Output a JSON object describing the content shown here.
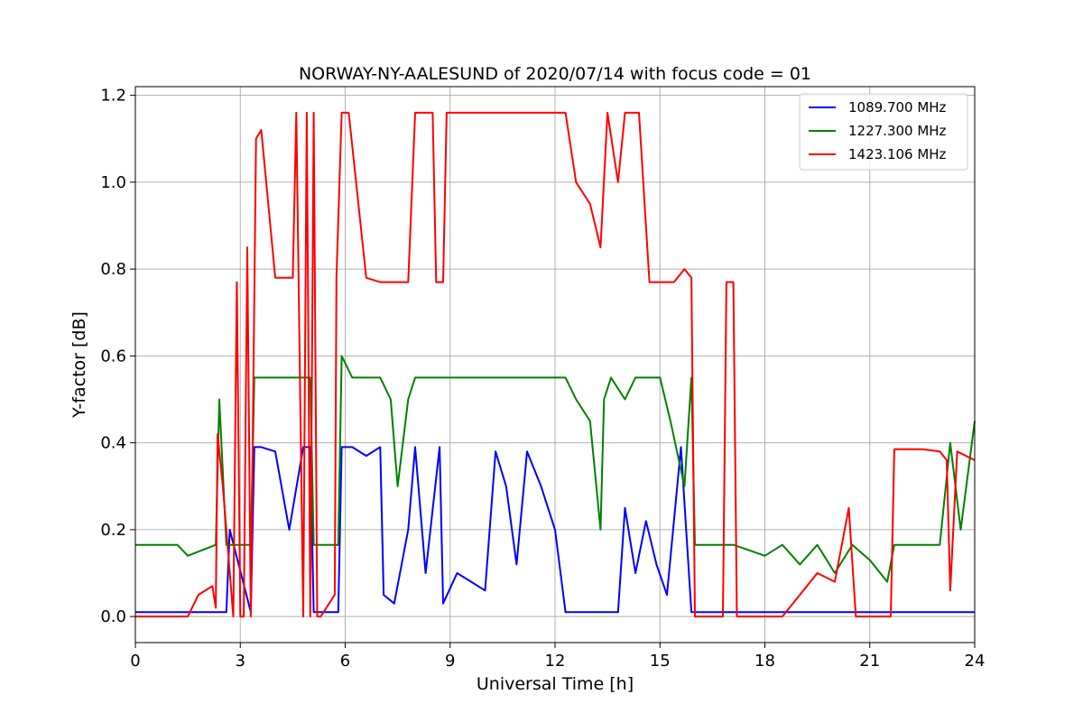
{
  "chart_data": {
    "type": "line",
    "title": "NORWAY-NY-AALESUND of 2020/07/14 with focus code = 01",
    "xlabel": "Universal Time [h]",
    "ylabel": "Y-factor [dB]",
    "xlim": [
      0,
      24
    ],
    "ylim": [
      -0.06,
      1.22
    ],
    "xticks": [
      0,
      3,
      6,
      9,
      12,
      15,
      18,
      21,
      24
    ],
    "yticks": [
      0.0,
      0.2,
      0.4,
      0.6,
      0.8,
      1.0,
      1.2
    ],
    "xtick_labels": [
      "0",
      "3",
      "6",
      "9",
      "12",
      "15",
      "18",
      "21",
      "24"
    ],
    "ytick_labels": [
      "0.0",
      "0.2",
      "0.4",
      "0.6",
      "0.8",
      "1.0",
      "1.2"
    ],
    "grid": true,
    "legend_position": "top-right",
    "series": [
      {
        "name": "1089.700 MHz",
        "color": "#0000ff",
        "x": [
          0,
          2.6,
          2.7,
          3.3,
          3.4,
          3.6,
          4.0,
          4.4,
          4.8,
          5.0,
          5.1,
          5.2,
          5.8,
          5.9,
          6.2,
          6.6,
          7.0,
          7.1,
          7.4,
          7.8,
          8.0,
          8.3,
          8.7,
          8.8,
          9.2,
          9.6,
          10.0,
          10.3,
          10.6,
          10.9,
          11.2,
          11.6,
          12.0,
          12.3,
          12.5,
          13.0,
          13.8,
          14.0,
          14.3,
          14.6,
          14.9,
          15.2,
          15.6,
          15.9,
          16.0,
          17.0,
          17.1,
          24
        ],
        "y": [
          0.01,
          0.01,
          0.2,
          0.01,
          0.39,
          0.39,
          0.38,
          0.2,
          0.39,
          0.39,
          0.01,
          0.01,
          0.01,
          0.39,
          0.39,
          0.37,
          0.39,
          0.05,
          0.03,
          0.2,
          0.39,
          0.1,
          0.39,
          0.03,
          0.1,
          0.08,
          0.06,
          0.38,
          0.3,
          0.12,
          0.38,
          0.3,
          0.2,
          0.01,
          0.01,
          0.01,
          0.01,
          0.25,
          0.1,
          0.22,
          0.12,
          0.05,
          0.39,
          0.01,
          0.01,
          0.01,
          0.01,
          0.01
        ]
      },
      {
        "name": "1227.300 MHz",
        "color": "#008000",
        "x": [
          0,
          1.2,
          1.5,
          2.3,
          2.4,
          2.6,
          3.3,
          3.4,
          5.0,
          5.1,
          5.8,
          5.9,
          6.2,
          6.5,
          7.0,
          7.3,
          7.5,
          7.8,
          8.0,
          12.0,
          12.3,
          12.6,
          13.0,
          13.3,
          13.4,
          13.6,
          14.0,
          14.3,
          15.0,
          15.3,
          15.7,
          15.9,
          16.0,
          17.0,
          17.1,
          18.0,
          18.5,
          19.0,
          19.5,
          20.0,
          20.5,
          21.0,
          21.5,
          21.7,
          21.8,
          23.0,
          23.3,
          23.6,
          24
        ],
        "y": [
          0.165,
          0.165,
          0.14,
          0.165,
          0.5,
          0.165,
          0.165,
          0.55,
          0.55,
          0.165,
          0.165,
          0.6,
          0.55,
          0.55,
          0.55,
          0.5,
          0.3,
          0.5,
          0.55,
          0.55,
          0.55,
          0.5,
          0.45,
          0.2,
          0.5,
          0.55,
          0.5,
          0.55,
          0.55,
          0.45,
          0.3,
          0.55,
          0.165,
          0.165,
          0.165,
          0.14,
          0.165,
          0.12,
          0.165,
          0.1,
          0.165,
          0.13,
          0.08,
          0.165,
          0.165,
          0.165,
          0.4,
          0.2,
          0.45
        ]
      },
      {
        "name": "1423.106 MHz",
        "color": "#ff0000",
        "x": [
          0,
          1.5,
          1.8,
          2.2,
          2.3,
          2.35,
          2.5,
          2.8,
          2.9,
          3.0,
          3.1,
          3.2,
          3.3,
          3.45,
          3.6,
          4.0,
          4.1,
          4.5,
          4.6,
          4.8,
          4.9,
          5.0,
          5.1,
          5.2,
          5.3,
          5.7,
          5.75,
          5.9,
          6.1,
          6.6,
          7.0,
          7.1,
          7.8,
          8.0,
          8.1,
          8.5,
          8.6,
          8.8,
          8.9,
          12.0,
          12.3,
          12.6,
          13.0,
          13.3,
          13.5,
          13.8,
          14.0,
          14.4,
          14.7,
          15.0,
          15.4,
          15.7,
          15.9,
          16.0,
          16.8,
          16.9,
          17.1,
          17.2,
          18.0,
          18.5,
          19.0,
          19.5,
          20.0,
          20.4,
          20.6,
          21.0,
          21.6,
          21.7,
          22.5,
          23.0,
          23.2,
          23.3,
          23.5,
          24
        ],
        "y": [
          0.0,
          0.0,
          0.05,
          0.07,
          0.02,
          0.42,
          0.3,
          0.0,
          0.77,
          0.0,
          0.0,
          0.85,
          0.0,
          1.1,
          1.12,
          0.78,
          0.78,
          0.78,
          1.16,
          0.0,
          1.16,
          0.0,
          1.16,
          0.0,
          0.0,
          0.05,
          0.78,
          1.16,
          1.16,
          0.78,
          0.77,
          0.77,
          0.77,
          1.16,
          1.16,
          1.16,
          0.77,
          0.77,
          1.16,
          1.16,
          1.16,
          1.0,
          0.95,
          0.85,
          1.16,
          1.0,
          1.16,
          1.16,
          0.77,
          0.77,
          0.77,
          0.8,
          0.78,
          0.0,
          0.0,
          0.77,
          0.77,
          0.0,
          0.0,
          0.0,
          0.05,
          0.1,
          0.08,
          0.25,
          0.0,
          0.0,
          0.0,
          0.385,
          0.385,
          0.38,
          0.36,
          0.06,
          0.38,
          0.36
        ]
      }
    ]
  }
}
